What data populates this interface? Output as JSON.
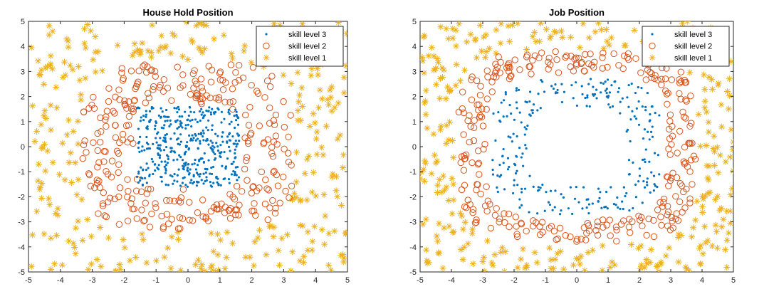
{
  "colors": {
    "skill3": "#0072BD",
    "skill2": "#D95319",
    "skill1": "#EDB120",
    "axis": "#262626",
    "legend_border": "#262626"
  },
  "chart_data": [
    {
      "type": "scatter",
      "title": "House Hold Position",
      "xlabel": "",
      "ylabel": "",
      "xlim": [
        -5,
        5
      ],
      "ylim": [
        -5,
        5
      ],
      "xticks": [
        "-5",
        "-4",
        "-3",
        "-2",
        "-1",
        "0",
        "1",
        "2",
        "3",
        "4",
        "5"
      ],
      "yticks": [
        "5",
        "4",
        "3",
        "2",
        "1",
        "0",
        "-1",
        "-2",
        "-3",
        "-4",
        "-5"
      ],
      "grid": false,
      "legend_position": "top-right",
      "series": [
        {
          "name": "skill level 3",
          "marker": "dot",
          "distribution": {
            "shape": "square",
            "inner": 0,
            "outer": 1.6
          },
          "count": 420
        },
        {
          "name": "skill level 2",
          "marker": "circle",
          "distribution": {
            "shape": "rounded-ring",
            "inner": 1.7,
            "outer": 3.3
          },
          "count": 300
        },
        {
          "name": "skill level 1",
          "marker": "asterisk",
          "distribution": {
            "shape": "outer",
            "inner": 3.4,
            "outer": 5.0
          },
          "count": 320
        }
      ]
    },
    {
      "type": "scatter",
      "title": "Job Position",
      "xlabel": "",
      "ylabel": "",
      "xlim": [
        -5,
        5
      ],
      "ylim": [
        -5,
        5
      ],
      "xticks": [
        "-5",
        "-4",
        "-3",
        "-2",
        "-1",
        "0",
        "1",
        "2",
        "3",
        "4",
        "5"
      ],
      "yticks": [
        "5",
        "4",
        "3",
        "2",
        "1",
        "0",
        "-1",
        "-2",
        "-3",
        "-4",
        "-5"
      ],
      "grid": false,
      "legend_position": "top-right",
      "series": [
        {
          "name": "skill level 3",
          "marker": "dot",
          "distribution": {
            "shape": "hollow-ring",
            "inner": 1.6,
            "outer": 2.7
          },
          "count": 260
        },
        {
          "name": "skill level 2",
          "marker": "circle",
          "distribution": {
            "shape": "rounded-ring",
            "inner": 2.9,
            "outer": 3.8
          },
          "count": 300
        },
        {
          "name": "skill level 1",
          "marker": "asterisk",
          "distribution": {
            "shape": "outer",
            "inner": 3.9,
            "outer": 5.0
          },
          "count": 320
        }
      ]
    }
  ]
}
